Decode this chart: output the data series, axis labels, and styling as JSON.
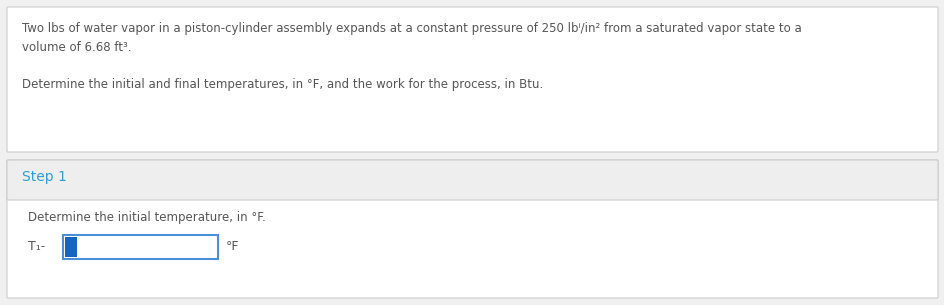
{
  "bg_color": "#f0f0f0",
  "white": "#ffffff",
  "border_color": "#cccccc",
  "step_color": "#2a9fd8",
  "text_color": "#555555",
  "input_border": "#4a90d9",
  "cursor_color": "#1565c0",
  "step_band_color": "#eeeeee",
  "line1": "Two lbs of water vapor in a piston-cylinder assembly expands at a constant pressure of 250 lbⁱ/in² from a saturated vapor state to a",
  "line2": "volume of 6.68 ft³.",
  "line3": "Determine the initial and final temperatures, in °F, and the work for the process, in Btu.",
  "step_label": "Step 1",
  "step_sub_text": "Determine the initial temperature, in °F.",
  "t1_label": "T₁-",
  "unit_label": "°F",
  "fig_width": 9.45,
  "fig_height": 3.05,
  "dpi": 100
}
